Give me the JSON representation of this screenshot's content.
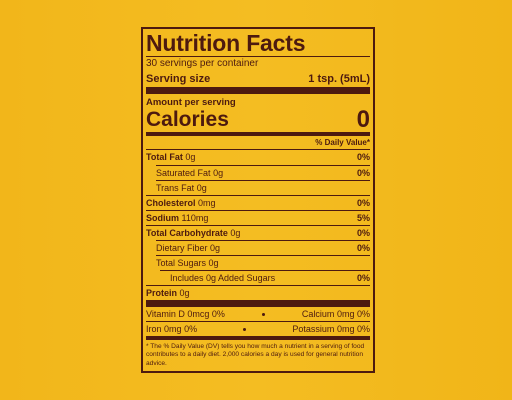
{
  "title": "Nutrition Facts",
  "servings": "30 servings per container",
  "serving_size": {
    "label": "Serving size",
    "value": "1 tsp. (5mL)"
  },
  "amount_per_serving": "Amount per serving",
  "calories": {
    "label": "Calories",
    "value": "0"
  },
  "daily_value_header": "% Daily Value*",
  "nutrients": [
    {
      "name": "Total Fat",
      "amount": "0g",
      "dv": "0%"
    },
    {
      "name": "Saturated Fat",
      "amount": "0g",
      "dv": "0%"
    },
    {
      "name": "Trans Fat",
      "amount": "0g"
    },
    {
      "name": "Cholesterol",
      "amount": "0mg",
      "dv": "0%"
    },
    {
      "name": "Sodium",
      "amount": "110mg",
      "dv": "5%"
    },
    {
      "name": "Total Carbohydrate",
      "amount": "0g",
      "dv": "0%"
    },
    {
      "name": "Dietary Fiber",
      "amount": "0g",
      "dv": "0%"
    },
    {
      "name": "Total Sugars",
      "amount": "0g"
    },
    {
      "name": "Includes 0g Added Sugars",
      "dv": "0%"
    },
    {
      "name": "Protein",
      "amount": "0g"
    }
  ],
  "vitamins": [
    {
      "name": "Vitamin D",
      "amount": "0mcg",
      "dv": "0%"
    },
    {
      "name": "Calcium",
      "amount": "0mg",
      "dv": "0%"
    },
    {
      "name": "Iron",
      "amount": "0mg",
      "dv": "0%"
    },
    {
      "name": "Potassium",
      "amount": "0mg",
      "dv": "0%"
    }
  ],
  "footnote": "* The % Daily Value (DV) tells you how much a nutrient in a serving of food contributes to a daily diet. 2,000 calories a day is used for general nutrition advice."
}
